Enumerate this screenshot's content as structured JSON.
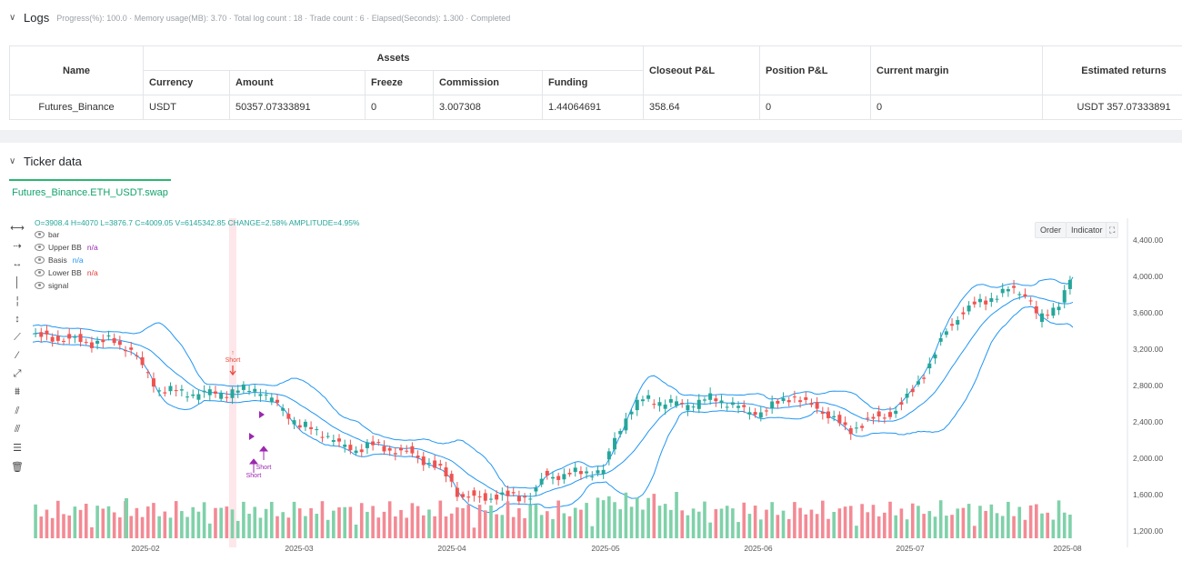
{
  "logs": {
    "title": "Logs",
    "meta": "Progress(%): 100.0 · Memory usage(MB): 3.70 · Total log count : 18 · Trade count : 6 · Elapsed(Seconds): 1.300 · Completed"
  },
  "table": {
    "name_header": "Name",
    "assets_header": "Assets",
    "sub_headers": [
      "Currency",
      "Amount",
      "Freeze",
      "Commission",
      "Funding"
    ],
    "closeout_header": "Closeout P&L",
    "position_header": "Position P&L",
    "margin_header": "Current margin",
    "returns_header": "Estimated returns",
    "row": {
      "name": "Futures_Binance",
      "currency": "USDT",
      "amount": "50357.07333891",
      "freeze": "0",
      "commission": "3.007308",
      "funding": "1.44064691",
      "closeout": "358.64",
      "position": "0",
      "margin": "0",
      "returns": "USDT 357.07333891"
    }
  },
  "ticker": {
    "title": "Ticker data",
    "tab": "Futures_Binance.ETH_USDT.swap"
  },
  "chart": {
    "ohlc_line": "O=3908.4 H=4070 L=3876.7 C=4009.05 V=6145342.85 CHANGE=2.58% AMPLITUDE=4.95%",
    "legend": {
      "bar": "bar",
      "upper": "Upper BB",
      "basis": "Basis",
      "lower": "Lower BB",
      "signal": "signal",
      "na": "n/a"
    },
    "buttons": {
      "order": "Order",
      "indicator": "Indicator"
    },
    "annotations": {
      "short": "Short",
      "arrow": "↑"
    }
  },
  "chart_data": {
    "type": "candlestick",
    "y_ticks": [
      "4,400.00",
      "4,000.00",
      "3,600.00",
      "3,200.00",
      "2,800.00",
      "2,400.00",
      "2,000.00",
      "1,600.00",
      "1,200.00"
    ],
    "ylim": [
      1100,
      4600
    ],
    "x_ticks": [
      "2025-02",
      "2025-03",
      "2025-04",
      "2025-05",
      "2025-06",
      "2025-07",
      "2025-08"
    ],
    "series": [
      {
        "name": "Upper BB"
      },
      {
        "name": "Basis"
      },
      {
        "name": "Lower BB"
      }
    ],
    "colors": {
      "up": "#26a69a",
      "down": "#ef5350",
      "vol_up": "#7fd1a9",
      "vol_down": "#f38a94",
      "band": "#2196f3",
      "signal": "#9c27b0",
      "short": "#e74c3c"
    }
  }
}
